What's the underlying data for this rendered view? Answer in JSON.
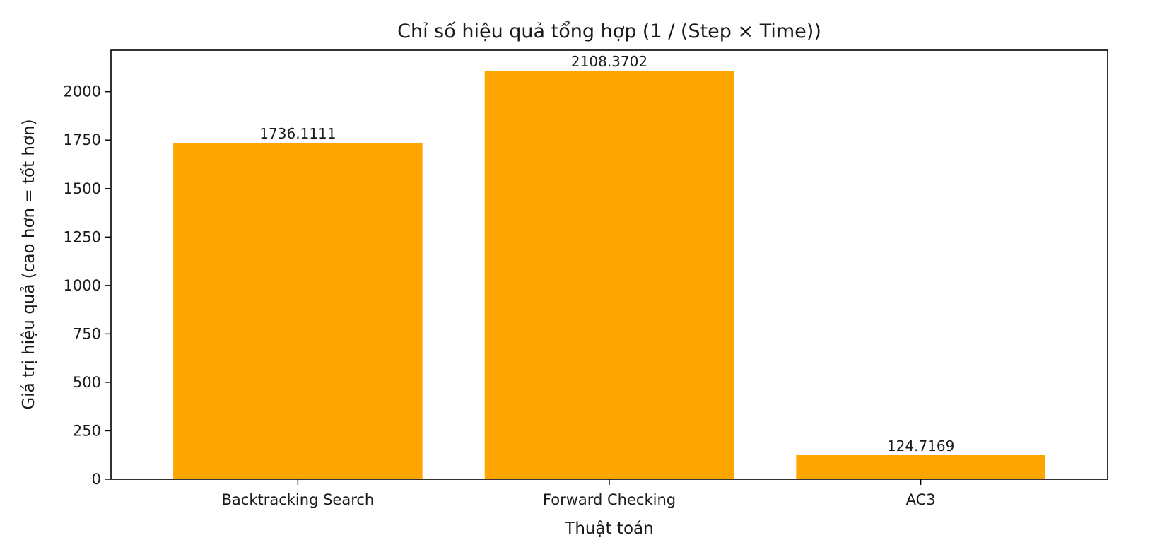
{
  "chart_data": {
    "type": "bar",
    "title": "Chỉ số hiệu quả tổng hợp (1 / (Step × Time))",
    "xlabel": "Thuật toán",
    "ylabel": "Giá trị hiệu quả (cao hơn = tốt hơn)",
    "categories": [
      "Backtracking Search",
      "Forward Checking",
      "AC3"
    ],
    "values": [
      1736.1111,
      2108.3702,
      124.7169
    ],
    "value_labels": [
      "1736.1111",
      "2108.3702",
      "124.7169"
    ],
    "ylim": [
      0,
      2214
    ],
    "yticks": [
      0,
      250,
      500,
      750,
      1000,
      1250,
      1500,
      1750,
      2000
    ],
    "bar_color": "#ffa500",
    "grid": false
  }
}
